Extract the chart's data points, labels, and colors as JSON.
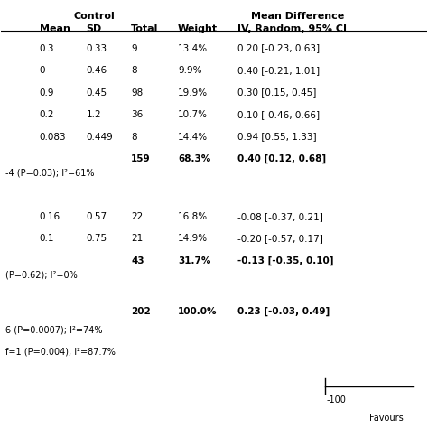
{
  "title_line1": "Control",
  "title_line2": "Mean Difference",
  "col_headers": [
    "Mean",
    "SD",
    "Total",
    "Weight",
    "IV, Random, 95% CI"
  ],
  "group1_rows": [
    {
      "mean": "0.3",
      "sd": "0.33",
      "total": "9",
      "weight": "13.4%",
      "ci": "0.20 [-0.23, 0.63]"
    },
    {
      "mean": "0",
      "sd": "0.46",
      "total": "8",
      "weight": "9.9%",
      "ci": "0.40 [-0.21, 1.01]"
    },
    {
      "mean": "0.9",
      "sd": "0.45",
      "total": "98",
      "weight": "19.9%",
      "ci": "0.30 [0.15, 0.45]"
    },
    {
      "mean": "0.2",
      "sd": "1.2",
      "total": "36",
      "weight": "10.7%",
      "ci": "0.10 [-0.46, 0.66]"
    },
    {
      "mean": "0.083",
      "sd": "0.449",
      "total": "8",
      "weight": "14.4%",
      "ci": "0.94 [0.55, 1.33]"
    },
    {
      "mean": "",
      "sd": "",
      "total": "159",
      "weight": "68.3%",
      "ci": "0.40 [0.12, 0.68]",
      "bold": true
    }
  ],
  "group1_footer": "-4 (P=0.03); I²=61%",
  "group2_rows": [
    {
      "mean": "0.16",
      "sd": "0.57",
      "total": "22",
      "weight": "16.8%",
      "ci": "-0.08 [-0.37, 0.21]"
    },
    {
      "mean": "0.1",
      "sd": "0.75",
      "total": "21",
      "weight": "14.9%",
      "ci": "-0.20 [-0.57, 0.17]"
    },
    {
      "mean": "",
      "sd": "",
      "total": "43",
      "weight": "31.7%",
      "ci": "-0.13 [-0.35, 0.10]",
      "bold": true
    }
  ],
  "group2_footer": "(P=0.62); I²=0%",
  "total_row": {
    "total": "202",
    "weight": "100.0%",
    "ci": "0.23 [-0.03, 0.49]",
    "bold": true
  },
  "footer1": "6 (P=0.0007); I²=74%",
  "footer2": "f=1 (P=0.004), I²=87.7%",
  "axis_label": "-100",
  "axis_sublabel": "Favours",
  "bg_color": "#ffffff",
  "text_color": "#000000",
  "header_color": "#000000"
}
